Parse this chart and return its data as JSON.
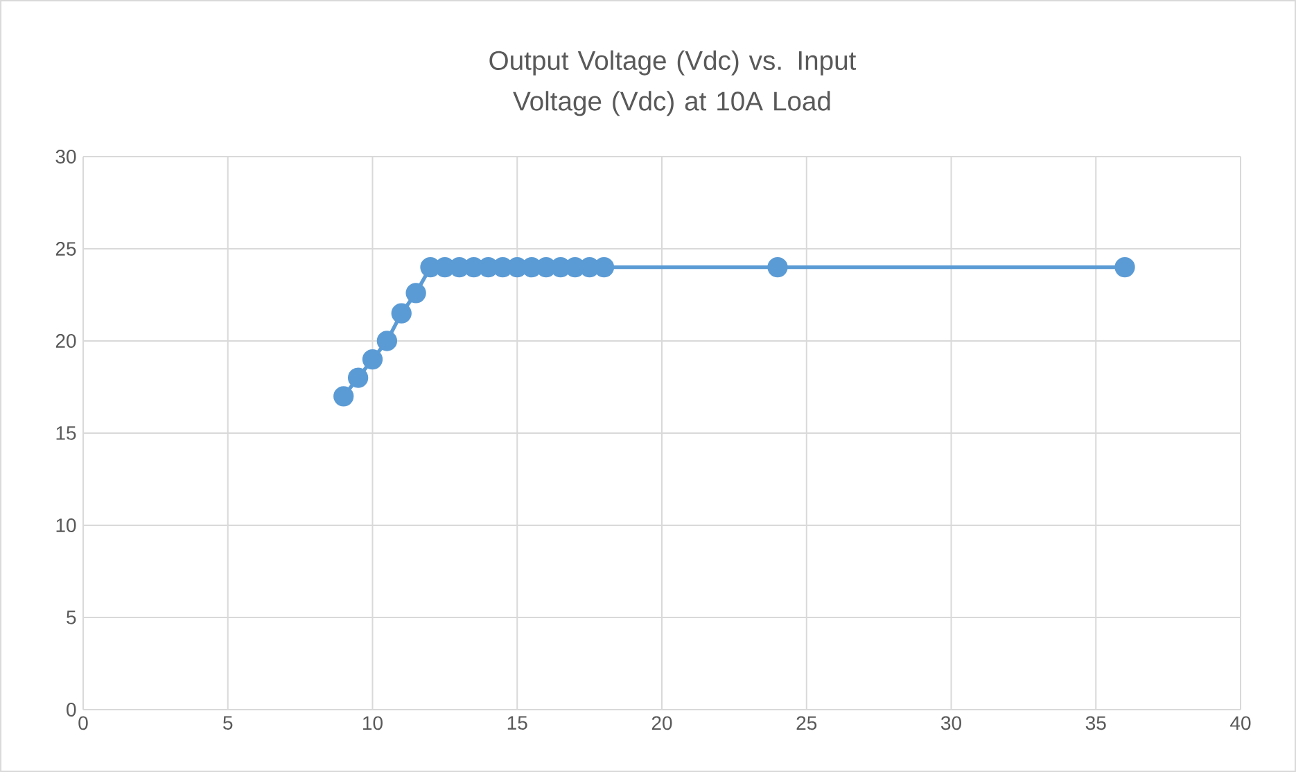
{
  "chart_data": {
    "type": "line",
    "title": "Output Voltage (Vdc) vs. Input Voltage (Vdc) at 10A Load",
    "x": [
      9,
      9.5,
      10,
      10.5,
      11,
      11.5,
      12,
      12.5,
      13,
      13.5,
      14,
      14.5,
      15,
      15.5,
      16,
      16.5,
      17,
      17.5,
      18,
      24,
      36
    ],
    "series": [
      {
        "color": "#5b9bd5",
        "values": [
          17,
          18,
          19,
          20,
          21.5,
          22.6,
          24,
          24,
          24,
          24,
          24,
          24,
          24,
          24,
          24,
          24,
          24,
          24,
          24,
          24,
          24
        ]
      }
    ],
    "xlim": [
      0,
      40
    ],
    "xticks": [
      0,
      5,
      10,
      15,
      20,
      25,
      30,
      35,
      40
    ],
    "ylim": [
      0,
      30
    ],
    "yticks": [
      0,
      5,
      10,
      15,
      20,
      25,
      30
    ],
    "grid": true,
    "marker": "circle",
    "line_style": "solid"
  }
}
